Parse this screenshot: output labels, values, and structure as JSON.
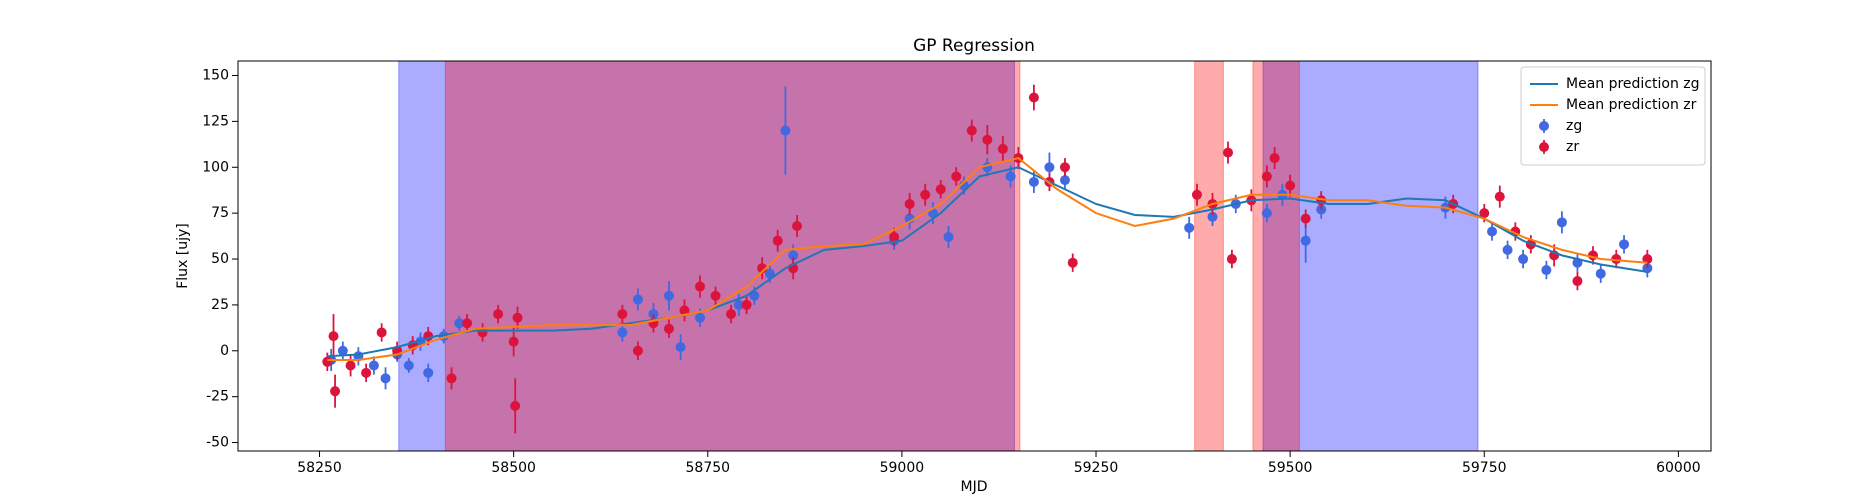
{
  "chart_data": {
    "type": "errorbar_scatter",
    "title": "GP Regression",
    "x_label": "MJD",
    "y_label": "Flux [ujy]",
    "xlim": [
      58145,
      60042
    ],
    "ylim": [
      -54.6,
      157.9
    ],
    "xticks": [
      58250,
      58500,
      58750,
      59000,
      59250,
      59500,
      59750,
      60000
    ],
    "yticks": [
      -50,
      -25,
      0,
      25,
      50,
      75,
      100,
      125,
      150
    ],
    "legend": "upper right",
    "spans": [
      {
        "color": "#0000ff",
        "x": [
          58352,
          59145
        ]
      },
      {
        "color": "#0000ff",
        "x": [
          59465,
          59742
        ]
      },
      {
        "color": "#ff0000",
        "x": [
          58412,
          59152
        ]
      },
      {
        "color": "#ff0000",
        "x": [
          59377,
          59414
        ]
      },
      {
        "color": "#ff0000",
        "x": [
          59452,
          59512
        ]
      }
    ],
    "lines": [
      {
        "name": "Mean prediction zg",
        "color": "#1f77b4",
        "x": [
          58260,
          58300,
          58350,
          58400,
          58450,
          58500,
          58550,
          58600,
          58650,
          58700,
          58750,
          58800,
          58850,
          58900,
          58950,
          59000,
          59050,
          59100,
          59150,
          59200,
          59250,
          59300,
          59350,
          59400,
          59450,
          59500,
          59550,
          59600,
          59650,
          59700,
          59750,
          59800,
          59850,
          59900,
          59960
        ],
        "values": [
          -3,
          -2,
          2,
          8,
          11,
          11,
          11,
          12,
          15,
          18,
          22,
          30,
          45,
          55,
          57,
          60,
          75,
          95,
          100,
          90,
          80,
          74,
          73,
          77,
          82,
          83,
          80,
          80,
          83,
          82,
          72,
          60,
          52,
          47,
          43
        ]
      },
      {
        "name": "Mean prediction zr",
        "color": "#ff7f0e",
        "x": [
          58260,
          58300,
          58350,
          58400,
          58450,
          58500,
          58550,
          58600,
          58650,
          58700,
          58750,
          58800,
          58850,
          58900,
          58950,
          59000,
          59050,
          59100,
          59150,
          59200,
          59250,
          59300,
          59350,
          59400,
          59450,
          59500,
          59550,
          59600,
          59650,
          59700,
          59750,
          59800,
          59850,
          59900,
          59960
        ],
        "values": [
          -5,
          -5,
          -2,
          6,
          12,
          13,
          14,
          14,
          14,
          18,
          22,
          35,
          55,
          57,
          58,
          68,
          80,
          100,
          105,
          88,
          75,
          68,
          72,
          80,
          85,
          85,
          82,
          82,
          79,
          78,
          72,
          62,
          55,
          50,
          48
        ]
      }
    ],
    "series": [
      {
        "name": "zg",
        "color": "#4169e1",
        "x": [
          58265,
          58280,
          58300,
          58320,
          58335,
          58350,
          58365,
          58380,
          58390,
          58410,
          58430,
          58640,
          58660,
          58680,
          58700,
          58715,
          58740,
          58790,
          58810,
          58830,
          58850,
          58860,
          58990,
          59010,
          59040,
          59060,
          59080,
          59110,
          59140,
          59170,
          59190,
          59210,
          59370,
          59400,
          59430,
          59470,
          59490,
          59520,
          59540,
          59700,
          59760,
          59780,
          59800,
          59830,
          59850,
          59870,
          59900,
          59930,
          59960
        ],
        "values": [
          -5,
          0,
          -3,
          -8,
          -15,
          -2,
          -8,
          5,
          -12,
          8,
          15,
          10,
          28,
          20,
          30,
          2,
          18,
          25,
          30,
          42,
          120,
          52,
          60,
          72,
          75,
          62,
          90,
          100,
          95,
          92,
          100,
          93,
          67,
          73,
          80,
          75,
          85,
          60,
          77,
          78,
          65,
          55,
          50,
          44,
          70,
          48,
          42,
          58,
          45
        ],
        "errors": [
          6,
          5,
          5,
          5,
          6,
          4,
          4,
          5,
          5,
          4,
          4,
          5,
          6,
          6,
          8,
          7,
          5,
          6,
          5,
          5,
          24,
          6,
          5,
          6,
          6,
          6,
          5,
          5,
          6,
          6,
          8,
          5,
          6,
          5,
          5,
          5,
          6,
          12,
          5,
          6,
          5,
          5,
          5,
          5,
          6,
          5,
          5,
          5,
          5
        ]
      },
      {
        "name": "zr",
        "color": "#dc143c",
        "x": [
          58260,
          58268,
          58270,
          58290,
          58310,
          58330,
          58350,
          58370,
          58390,
          58420,
          58440,
          58460,
          58480,
          58500,
          58502,
          58505,
          58640,
          58660,
          58680,
          58700,
          58720,
          58740,
          58760,
          58780,
          58800,
          58820,
          58840,
          58860,
          58865,
          58990,
          59010,
          59030,
          59050,
          59070,
          59090,
          59110,
          59130,
          59150,
          59170,
          59190,
          59210,
          59220,
          59380,
          59400,
          59420,
          59425,
          59450,
          59470,
          59480,
          59500,
          59520,
          59540,
          59710,
          59750,
          59770,
          59790,
          59810,
          59840,
          59870,
          59890,
          59920,
          59960
        ],
        "values": [
          -6,
          8,
          -22,
          -8,
          -12,
          10,
          0,
          3,
          8,
          -15,
          15,
          10,
          20,
          5,
          -30,
          18,
          20,
          0,
          15,
          12,
          22,
          35,
          30,
          20,
          25,
          45,
          60,
          45,
          68,
          62,
          80,
          85,
          88,
          95,
          120,
          115,
          110,
          105,
          138,
          92,
          100,
          48,
          85,
          80,
          108,
          50,
          82,
          95,
          105,
          90,
          72,
          82,
          80,
          75,
          84,
          65,
          58,
          52,
          38,
          52,
          50,
          50
        ],
        "errors": [
          5,
          12,
          9,
          6,
          5,
          5,
          5,
          5,
          5,
          6,
          5,
          5,
          5,
          8,
          15,
          6,
          5,
          5,
          5,
          5,
          6,
          6,
          5,
          5,
          5,
          6,
          6,
          6,
          6,
          5,
          6,
          6,
          5,
          5,
          6,
          8,
          7,
          6,
          7,
          5,
          5,
          5,
          6,
          6,
          6,
          5,
          6,
          6,
          6,
          6,
          5,
          5,
          5,
          5,
          6,
          5,
          5,
          6,
          5,
          5,
          5,
          5
        ]
      }
    ]
  }
}
